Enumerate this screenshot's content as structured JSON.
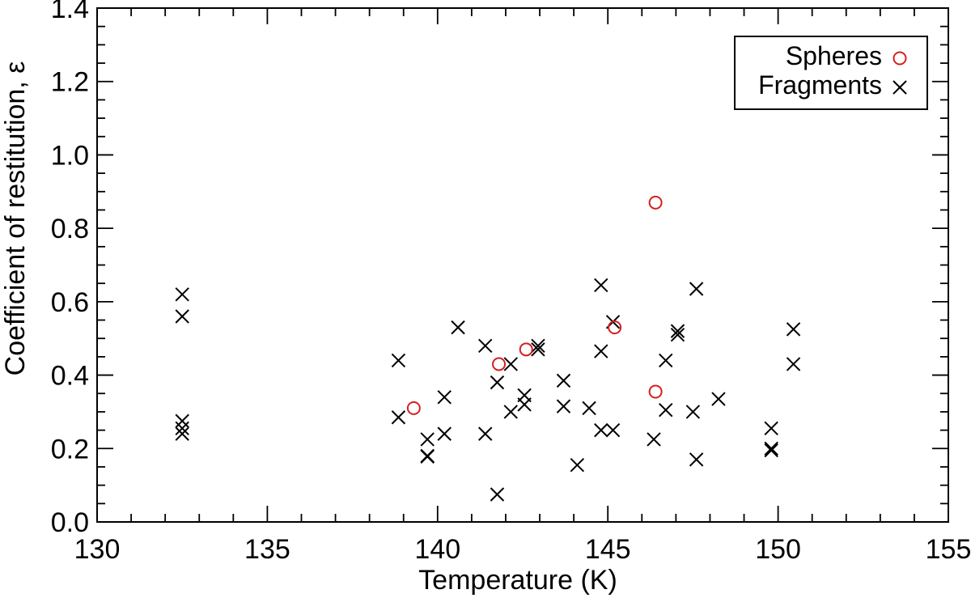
{
  "chart_data": {
    "type": "scatter",
    "title": "",
    "xlabel": "Temperature (K)",
    "ylabel": "Coefficient of restitution, ε",
    "xlim": [
      130,
      155
    ],
    "ylim": [
      0.0,
      1.4
    ],
    "xticks": [
      130,
      135,
      140,
      145,
      150,
      155
    ],
    "xtick_labels": [
      "130",
      "135",
      "140",
      "145",
      "150",
      "155"
    ],
    "yticks": [
      0.0,
      0.2,
      0.4,
      0.6,
      0.8,
      1.0,
      1.2,
      1.4
    ],
    "ytick_labels": [
      "0.0",
      "0.2",
      "0.4",
      "0.6",
      "0.8",
      "1.0",
      "1.2",
      "1.4"
    ],
    "grid": false,
    "legend_position": "top-right",
    "series": [
      {
        "name": "Spheres",
        "marker": "circle",
        "color": "#d42020",
        "points": [
          [
            139.3,
            0.31
          ],
          [
            141.8,
            0.43
          ],
          [
            142.6,
            0.47
          ],
          [
            145.2,
            0.53
          ],
          [
            146.4,
            0.87
          ],
          [
            146.4,
            0.355
          ]
        ]
      },
      {
        "name": "Fragments",
        "marker": "x",
        "color": "#000000",
        "points": [
          [
            132.5,
            0.62
          ],
          [
            132.5,
            0.56
          ],
          [
            132.5,
            0.275
          ],
          [
            132.5,
            0.255
          ],
          [
            132.5,
            0.24
          ],
          [
            138.85,
            0.44
          ],
          [
            138.85,
            0.285
          ],
          [
            139.7,
            0.225
          ],
          [
            139.7,
            0.18
          ],
          [
            139.7,
            0.178
          ],
          [
            140.2,
            0.34
          ],
          [
            140.2,
            0.24
          ],
          [
            140.6,
            0.53
          ],
          [
            141.4,
            0.48
          ],
          [
            141.4,
            0.24
          ],
          [
            141.75,
            0.38
          ],
          [
            141.75,
            0.075
          ],
          [
            142.15,
            0.43
          ],
          [
            142.15,
            0.3
          ],
          [
            142.55,
            0.345
          ],
          [
            142.55,
            0.32
          ],
          [
            142.95,
            0.48
          ],
          [
            142.95,
            0.47
          ],
          [
            143.7,
            0.385
          ],
          [
            143.7,
            0.315
          ],
          [
            144.1,
            0.155
          ],
          [
            144.45,
            0.31
          ],
          [
            144.8,
            0.645
          ],
          [
            144.8,
            0.465
          ],
          [
            144.8,
            0.25
          ],
          [
            145.15,
            0.545
          ],
          [
            145.15,
            0.25
          ],
          [
            146.35,
            0.225
          ],
          [
            146.7,
            0.44
          ],
          [
            146.7,
            0.305
          ],
          [
            147.05,
            0.52
          ],
          [
            147.05,
            0.51
          ],
          [
            147.5,
            0.3
          ],
          [
            147.6,
            0.635
          ],
          [
            147.6,
            0.17
          ],
          [
            148.25,
            0.335
          ],
          [
            149.8,
            0.255
          ],
          [
            149.8,
            0.2
          ],
          [
            149.8,
            0.195
          ],
          [
            150.45,
            0.525
          ],
          [
            150.45,
            0.43
          ]
        ]
      }
    ]
  }
}
